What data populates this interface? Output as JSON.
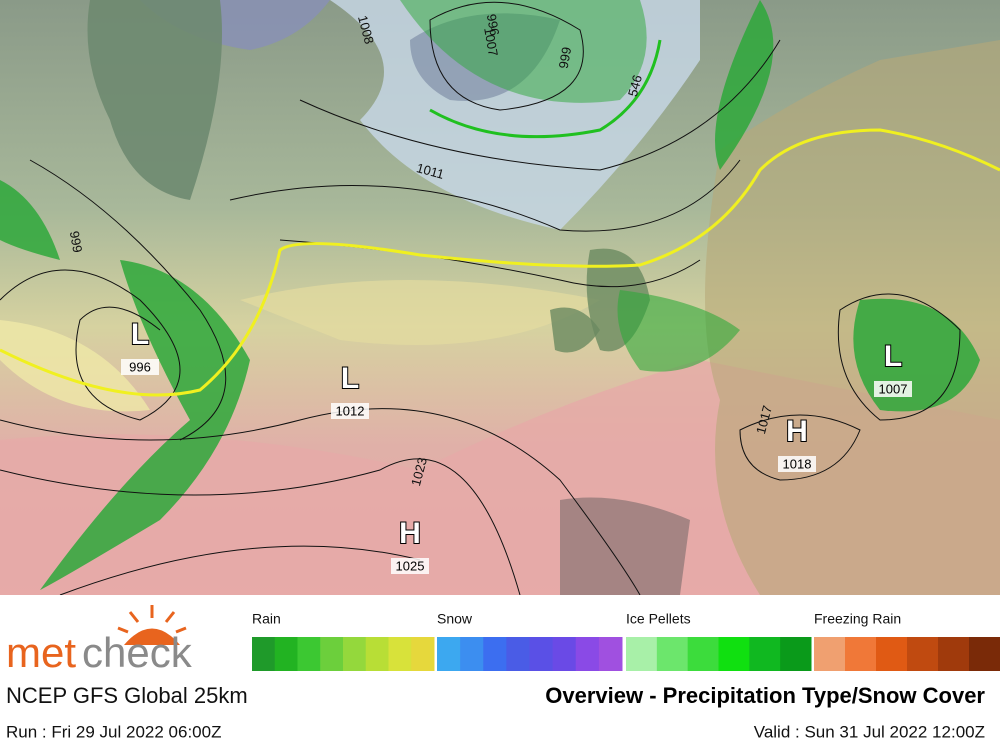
{
  "map": {
    "pressure_centers": [
      {
        "symbol": "L",
        "value": "996"
      },
      {
        "symbol": "L",
        "value": "1012"
      },
      {
        "symbol": "H",
        "value": "1025"
      },
      {
        "symbol": "H",
        "value": "1018"
      },
      {
        "symbol": "L",
        "value": "1007"
      }
    ],
    "isobar_labels": [
      "1008",
      "1011",
      "999",
      "1023",
      "1017",
      "1007",
      "996",
      "999",
      "546"
    ]
  },
  "legend": [
    {
      "label": "Rain",
      "colors": [
        "#1f9a2a",
        "#22b322",
        "#3cc832",
        "#6ccf3c",
        "#94d83c",
        "#b8de36",
        "#d8e23a",
        "#e6d83c"
      ]
    },
    {
      "label": "Snow",
      "colors": [
        "#3ca8f0",
        "#3c8ef0",
        "#3c6ef0",
        "#4a5ce6",
        "#5a50e6",
        "#6a4ae6",
        "#8a4ae6",
        "#a050e0"
      ]
    },
    {
      "label": "Ice Pellets",
      "colors": [
        "#a8f0a8",
        "#6ce66c",
        "#3cdc3c",
        "#10e010",
        "#10b820",
        "#0a9a1a"
      ]
    },
    {
      "label": "Freezing Rain",
      "colors": [
        "#f0a070",
        "#f07838",
        "#e05a14",
        "#c04a10",
        "#a03a0c",
        "#7a2a08"
      ]
    }
  ],
  "footer": {
    "logo": {
      "part1": "met",
      "part2": "check"
    },
    "model": "NCEP GFS Global 25km",
    "title": "Overview - Precipitation Type/Snow Cover",
    "run": "Run : Fri 29 Jul 2022 06:00Z",
    "valid": "Valid : Sun 31 Jul 2022 12:00Z"
  }
}
